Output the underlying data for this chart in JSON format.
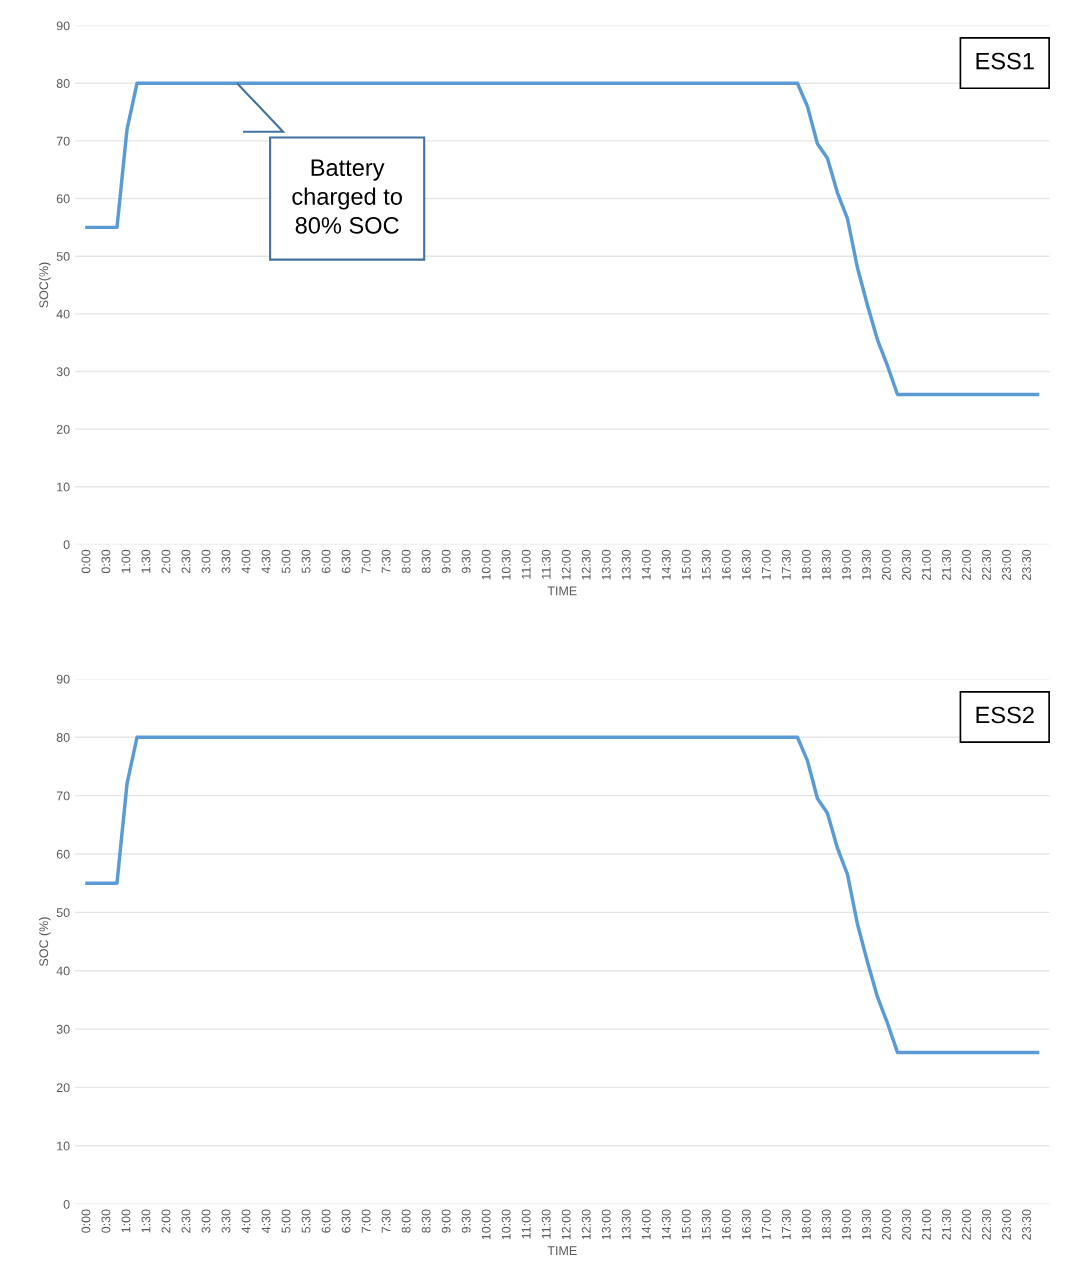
{
  "chart_data": [
    {
      "type": "line",
      "xlabel": "TIME",
      "ylabel": "SOC(%)",
      "xlim": [
        -0.3,
        24.05
      ],
      "ylim": [
        0,
        90
      ],
      "yticks": [
        0,
        10,
        20,
        30,
        40,
        50,
        60,
        70,
        80,
        90
      ],
      "xticks": [
        {
          "value": 0,
          "label": "0:00"
        },
        {
          "value": 0.5,
          "label": "0:30"
        },
        {
          "value": 1,
          "label": "1:00"
        },
        {
          "value": 1.5,
          "label": "1:30"
        },
        {
          "value": 2,
          "label": "2:00"
        },
        {
          "value": 2.5,
          "label": "2:30"
        },
        {
          "value": 3,
          "label": "3:00"
        },
        {
          "value": 3.5,
          "label": "3:30"
        },
        {
          "value": 4,
          "label": "4:00"
        },
        {
          "value": 4.5,
          "label": "4:30"
        },
        {
          "value": 5,
          "label": "5:00"
        },
        {
          "value": 5.5,
          "label": "5:30"
        },
        {
          "value": 6,
          "label": "6:00"
        },
        {
          "value": 6.5,
          "label": "6:30"
        },
        {
          "value": 7,
          "label": "7:00"
        },
        {
          "value": 7.5,
          "label": "7:30"
        },
        {
          "value": 8,
          "label": "8:00"
        },
        {
          "value": 8.5,
          "label": "8:30"
        },
        {
          "value": 9,
          "label": "9:00"
        },
        {
          "value": 9.5,
          "label": "9:30"
        },
        {
          "value": 10,
          "label": "10:00"
        },
        {
          "value": 10.5,
          "label": "10:30"
        },
        {
          "value": 11,
          "label": "11:00"
        },
        {
          "value": 11.5,
          "label": "11:30"
        },
        {
          "value": 12,
          "label": "12:00"
        },
        {
          "value": 12.5,
          "label": "12:30"
        },
        {
          "value": 13,
          "label": "13:00"
        },
        {
          "value": 13.5,
          "label": "13:30"
        },
        {
          "value": 14,
          "label": "14:00"
        },
        {
          "value": 14.5,
          "label": "14:30"
        },
        {
          "value": 15,
          "label": "15:00"
        },
        {
          "value": 15.5,
          "label": "15:30"
        },
        {
          "value": 16,
          "label": "16:00"
        },
        {
          "value": 16.5,
          "label": "16:30"
        },
        {
          "value": 17,
          "label": "17:00"
        },
        {
          "value": 17.5,
          "label": "17:30"
        },
        {
          "value": 18,
          "label": "18:00"
        },
        {
          "value": 18.5,
          "label": "18:30"
        },
        {
          "value": 19,
          "label": "19:00"
        },
        {
          "value": 19.5,
          "label": "19:30"
        },
        {
          "value": 20,
          "label": "20:00"
        },
        {
          "value": 20.5,
          "label": "20:30"
        },
        {
          "value": 21,
          "label": "21:00"
        },
        {
          "value": 21.5,
          "label": "21:30"
        },
        {
          "value": 22,
          "label": "22:00"
        },
        {
          "value": 22.5,
          "label": "22:30"
        },
        {
          "value": 23,
          "label": "23:00"
        },
        {
          "value": 23.5,
          "label": "23:30"
        }
      ],
      "grid": "y",
      "marker": "none",
      "line_style": "solid",
      "series": [
        {
          "color": "#5b9bd5",
          "x": [
            0,
            0.75,
            1,
            1.25,
            17.75,
            18,
            18.25,
            18.5,
            18.75,
            19,
            19.25,
            19.5,
            19.75,
            20,
            20.25,
            23.75
          ],
          "values": [
            55,
            55,
            72,
            80,
            80,
            76,
            69.5,
            67,
            61,
            56.5,
            48,
            41.5,
            35.5,
            31,
            26,
            26
          ]
        }
      ],
      "annotations": [
        {
          "text": "Battery\ncharged to\n80% SOC",
          "x": 3.75,
          "y": 80
        }
      ],
      "title": "ESS1"
    },
    {
      "type": "line",
      "xlabel": "TIME",
      "ylabel": "SOC (%)",
      "xlim": [
        -0.3,
        24.05
      ],
      "ylim": [
        0,
        90
      ],
      "yticks": [
        0,
        10,
        20,
        30,
        40,
        50,
        60,
        70,
        80,
        90
      ],
      "xticks": [
        {
          "value": 0,
          "label": "0:00"
        },
        {
          "value": 0.5,
          "label": "0:30"
        },
        {
          "value": 1,
          "label": "1:00"
        },
        {
          "value": 1.5,
          "label": "1:30"
        },
        {
          "value": 2,
          "label": "2:00"
        },
        {
          "value": 2.5,
          "label": "2:30"
        },
        {
          "value": 3,
          "label": "3:00"
        },
        {
          "value": 3.5,
          "label": "3:30"
        },
        {
          "value": 4,
          "label": "4:00"
        },
        {
          "value": 4.5,
          "label": "4:30"
        },
        {
          "value": 5,
          "label": "5:00"
        },
        {
          "value": 5.5,
          "label": "5:30"
        },
        {
          "value": 6,
          "label": "6:00"
        },
        {
          "value": 6.5,
          "label": "6:30"
        },
        {
          "value": 7,
          "label": "7:00"
        },
        {
          "value": 7.5,
          "label": "7:30"
        },
        {
          "value": 8,
          "label": "8:00"
        },
        {
          "value": 8.5,
          "label": "8:30"
        },
        {
          "value": 9,
          "label": "9:00"
        },
        {
          "value": 9.5,
          "label": "9:30"
        },
        {
          "value": 10,
          "label": "10:00"
        },
        {
          "value": 10.5,
          "label": "10:30"
        },
        {
          "value": 11,
          "label": "11:00"
        },
        {
          "value": 11.5,
          "label": "11:30"
        },
        {
          "value": 12,
          "label": "12:00"
        },
        {
          "value": 12.5,
          "label": "12:30"
        },
        {
          "value": 13,
          "label": "13:00"
        },
        {
          "value": 13.5,
          "label": "13:30"
        },
        {
          "value": 14,
          "label": "14:00"
        },
        {
          "value": 14.5,
          "label": "14:30"
        },
        {
          "value": 15,
          "label": "15:00"
        },
        {
          "value": 15.5,
          "label": "15:30"
        },
        {
          "value": 16,
          "label": "16:00"
        },
        {
          "value": 16.5,
          "label": "16:30"
        },
        {
          "value": 17,
          "label": "17:00"
        },
        {
          "value": 17.5,
          "label": "17:30"
        },
        {
          "value": 18,
          "label": "18:00"
        },
        {
          "value": 18.5,
          "label": "18:30"
        },
        {
          "value": 19,
          "label": "19:00"
        },
        {
          "value": 19.5,
          "label": "19:30"
        },
        {
          "value": 20,
          "label": "20:00"
        },
        {
          "value": 20.5,
          "label": "20:30"
        },
        {
          "value": 21,
          "label": "21:00"
        },
        {
          "value": 21.5,
          "label": "21:30"
        },
        {
          "value": 22,
          "label": "22:00"
        },
        {
          "value": 22.5,
          "label": "22:30"
        },
        {
          "value": 23,
          "label": "23:00"
        },
        {
          "value": 23.5,
          "label": "23:30"
        }
      ],
      "grid": "y",
      "marker": "none",
      "line_style": "solid",
      "series": [
        {
          "color": "#5b9bd5",
          "x": [
            0,
            0.75,
            1,
            1.25,
            17.75,
            18,
            18.25,
            18.5,
            18.75,
            19,
            19.25,
            19.5,
            19.75,
            20,
            20.25,
            23.75
          ],
          "values": [
            55,
            55,
            72,
            80,
            80,
            76,
            69.5,
            67,
            61,
            56.5,
            48,
            41.5,
            35.5,
            31,
            26,
            26
          ]
        }
      ],
      "title": "ESS2"
    }
  ]
}
